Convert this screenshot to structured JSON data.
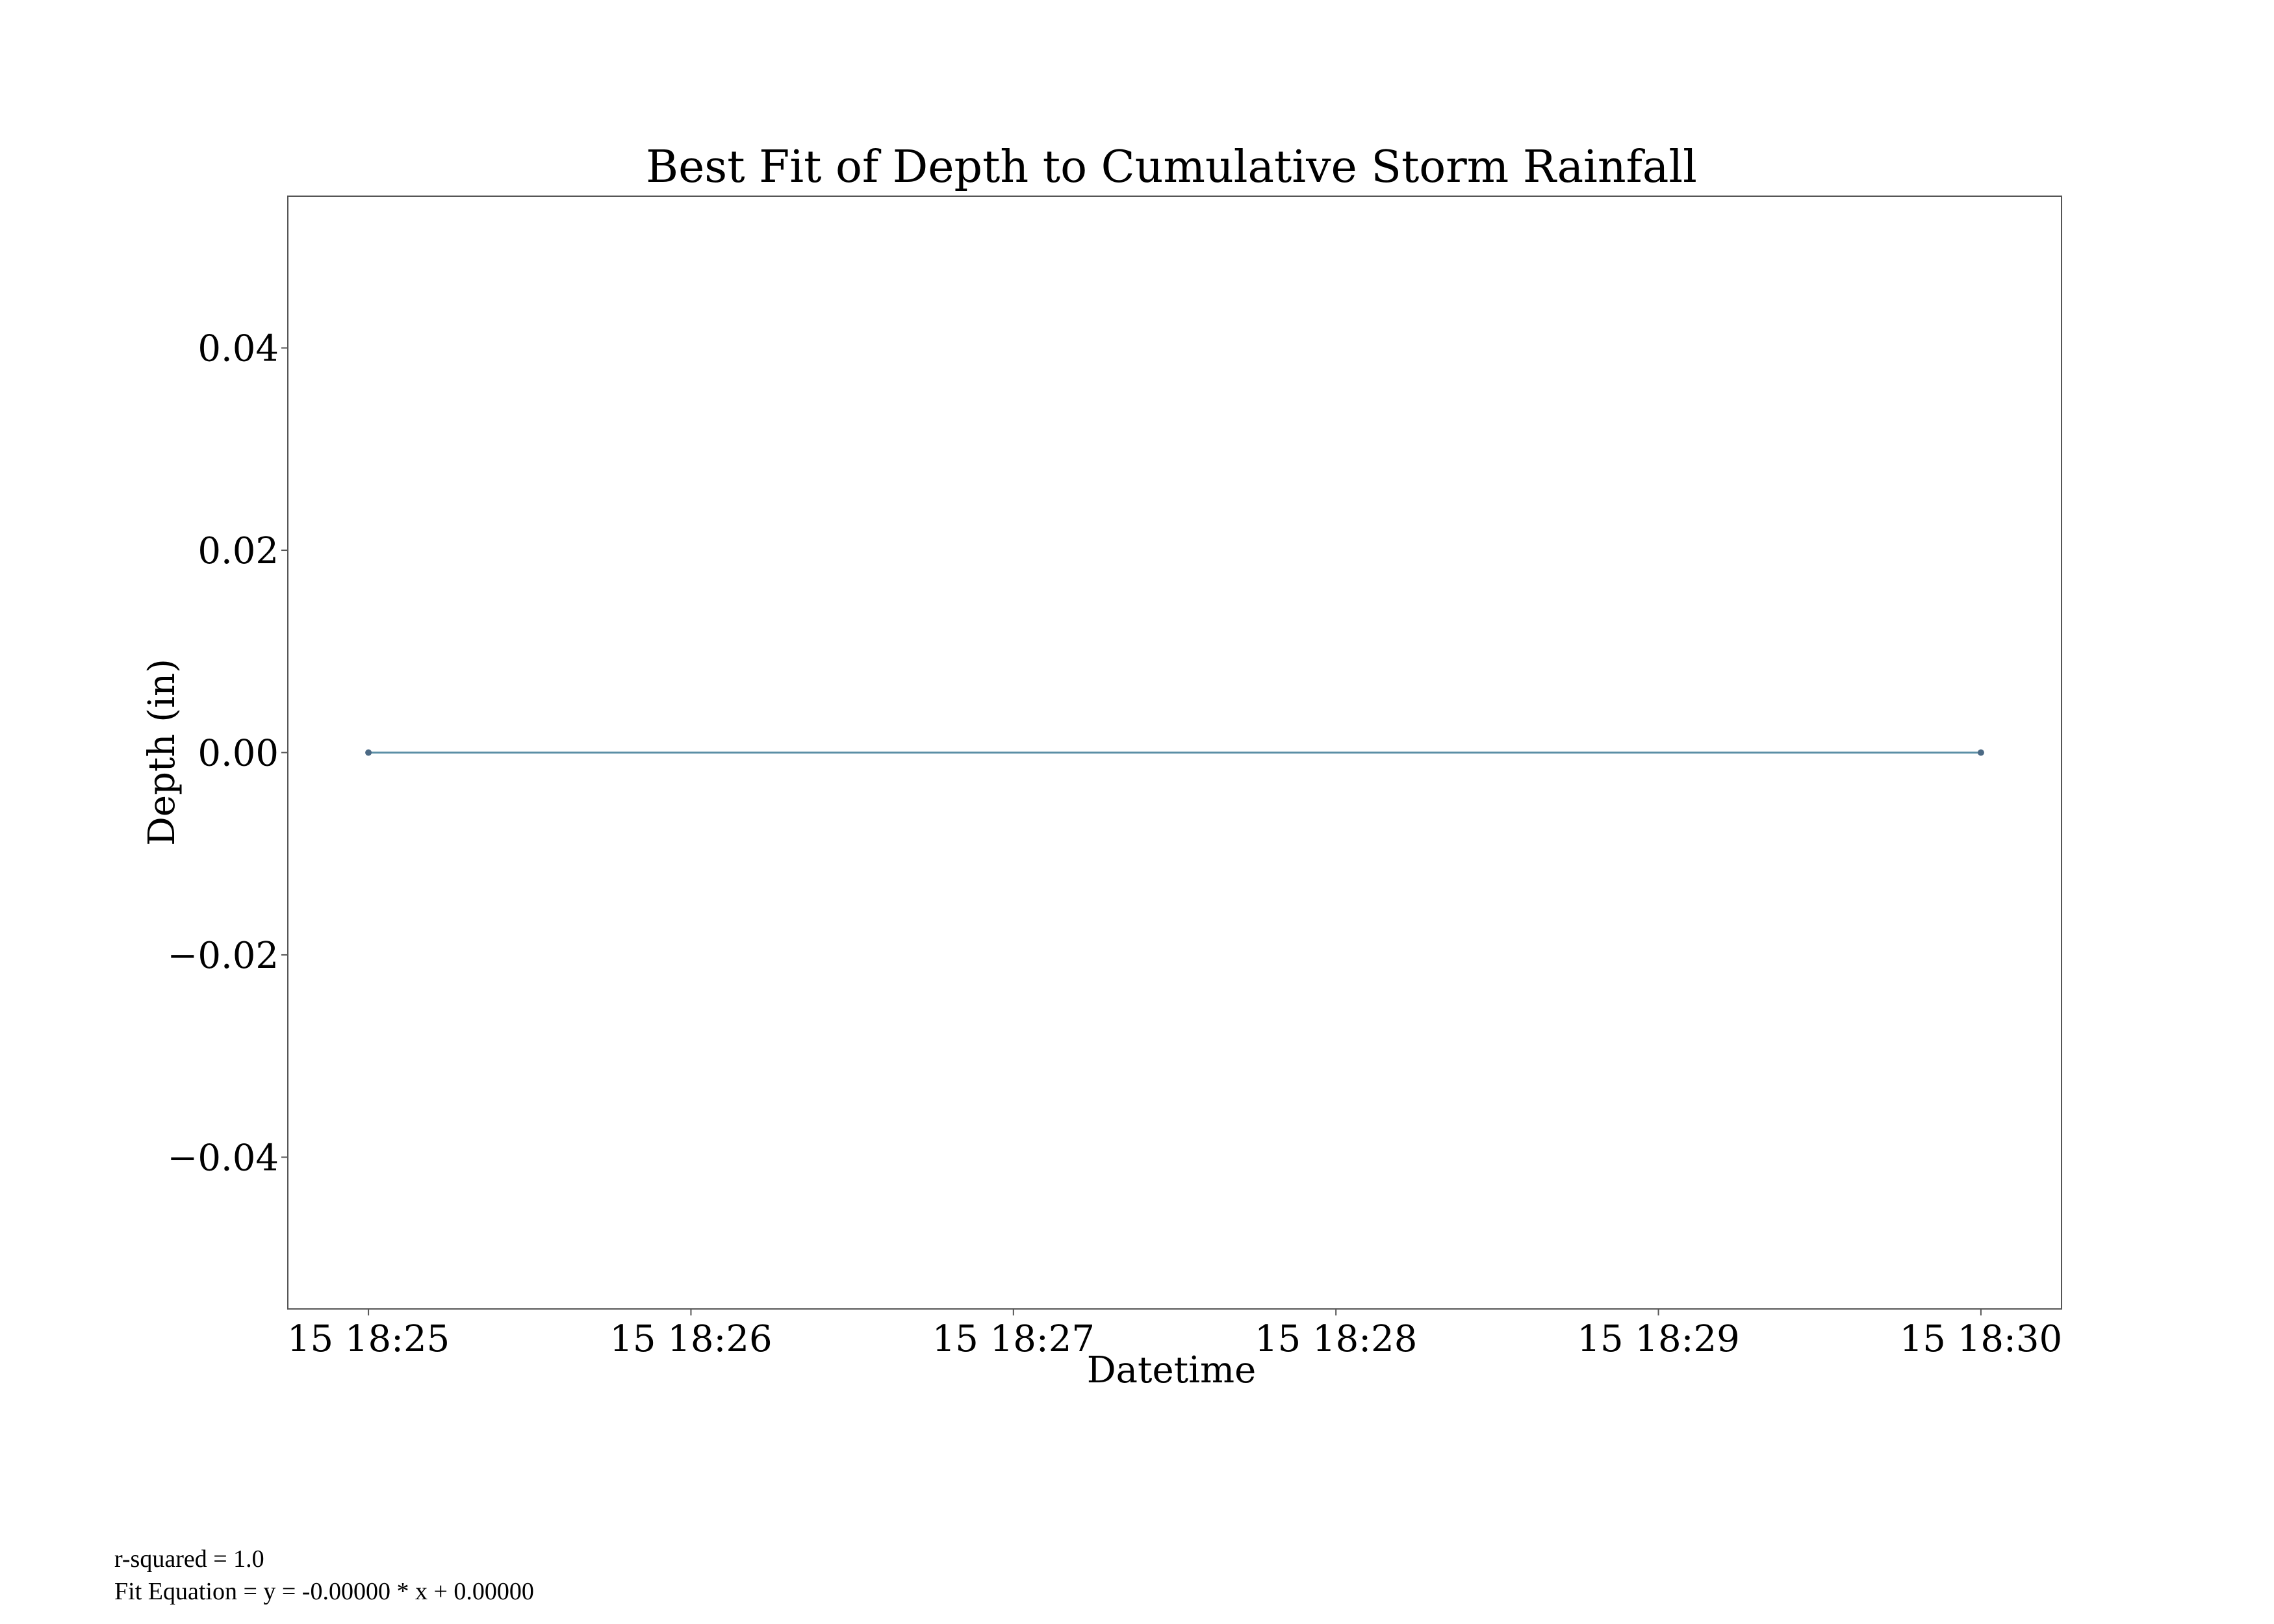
{
  "chart_data": {
    "type": "line",
    "title": "Best Fit of Depth to Cumulative Storm Rainfall",
    "xlabel": "Datetime",
    "ylabel": "Depth (in)",
    "x_tick_labels": [
      "15 18:25",
      "15 18:26",
      "15 18:27",
      "15 18:28",
      "15 18:29",
      "15 18:30"
    ],
    "y_tick_labels": [
      "0.04",
      "0.02",
      "0.00",
      "−0.02",
      "−0.04"
    ],
    "y_ticks": [
      0.04,
      0.02,
      0.0,
      -0.02,
      -0.04
    ],
    "ylim": [
      -0.055,
      0.055
    ],
    "xlim": [
      "15 18:24:45",
      "15 18:30:15"
    ],
    "grid": false,
    "series": [
      {
        "x": [
          "15 18:25",
          "15 18:30"
        ],
        "y": [
          0.0,
          0.0
        ],
        "color": "#5b8fa6",
        "marker_color": "#4c6a85"
      }
    ]
  },
  "annotations": {
    "r_squared": "r-squared = 1.0",
    "fit_equation": "Fit Equation = y = -0.00000 * x + 0.00000"
  }
}
